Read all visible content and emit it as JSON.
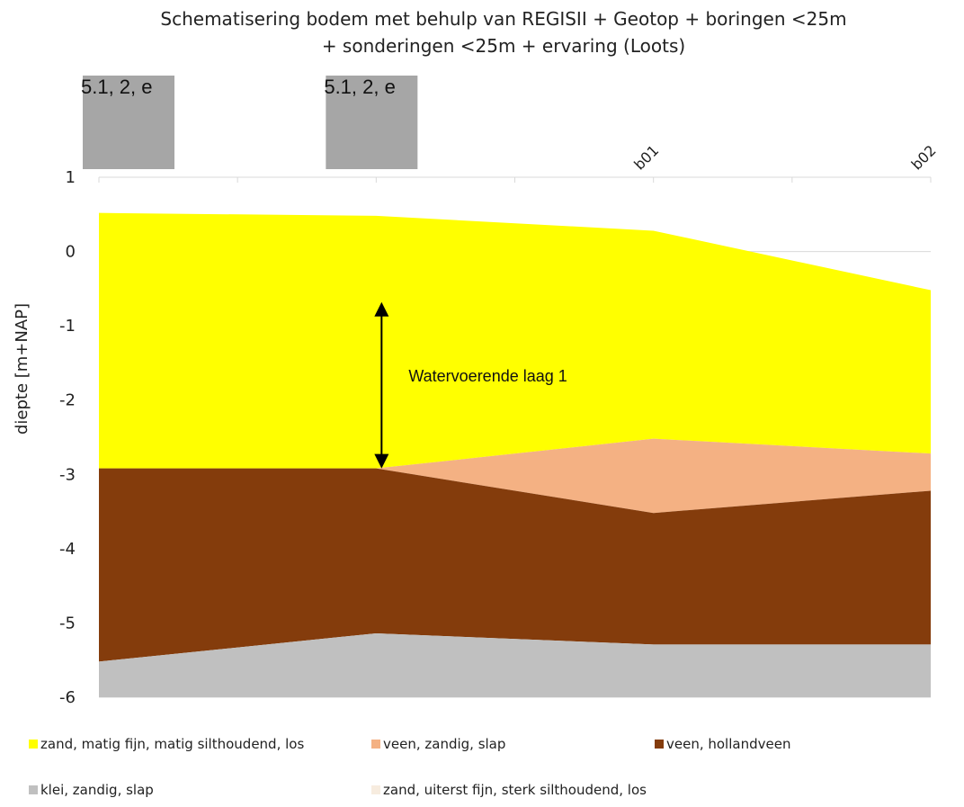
{
  "chart_data": {
    "type": "area",
    "title": "Schematisering bodem met behulp van REGISII + Geotop + boringen <25m + sonderingen <25m + ervaring (Loots)",
    "title_lines": [
      "Schematisering bodem met behulp van REGISII + Geotop + boringen <25m",
      "+ sonderingen <25m + ervaring (Loots)"
    ],
    "ylabel": "diepte [m+NAP]",
    "ylim": [
      -6,
      1
    ],
    "yticks": [
      "1",
      "0",
      "-1",
      "-2",
      "-3",
      "-4",
      "-5",
      "-6"
    ],
    "grid": "horizontal",
    "legend_position": "bottom",
    "categories": [
      "",
      "",
      "b01",
      "b02"
    ],
    "series": [
      {
        "name": "zand, matig fijn, matig silthoudend, los",
        "color": "#ffff00",
        "top": [
          0.52,
          0.48,
          0.28,
          -0.52
        ],
        "bottom": [
          -2.92,
          -2.92,
          -2.52,
          -2.72
        ]
      },
      {
        "name": "veen, zandig, slap",
        "color": "#f4b183",
        "top": [
          -2.92,
          -2.92,
          -2.52,
          -2.72
        ],
        "bottom": [
          -2.92,
          -2.92,
          -3.52,
          -3.22
        ]
      },
      {
        "name": "veen, hollandveen",
        "color": "#843c0c",
        "top": [
          -2.92,
          -2.92,
          -3.52,
          -3.22
        ],
        "bottom": [
          -5.52,
          -5.14,
          -5.29,
          -5.29
        ]
      },
      {
        "name": "klei, zandig, slap",
        "color": "#c0c0c0",
        "top": [
          -5.52,
          -5.14,
          -5.29,
          -5.29
        ],
        "bottom": [
          -6,
          -6,
          -6,
          -6
        ]
      },
      {
        "name": "zand, uiterst fijn, sterk silthoudend, los",
        "color": "#f7ecdf",
        "top": [],
        "bottom": []
      }
    ],
    "markers": [
      {
        "label": "5.1, 2, e",
        "category_index": 0,
        "color": "#a6a6a6"
      },
      {
        "label": "5.1, 2, e",
        "category_index": 1,
        "color": "#a6a6a6"
      }
    ],
    "annotation": {
      "text": "Watervoerende laag 1",
      "category_index": 1,
      "y_range": [
        -2.92,
        -0.68
      ]
    }
  }
}
